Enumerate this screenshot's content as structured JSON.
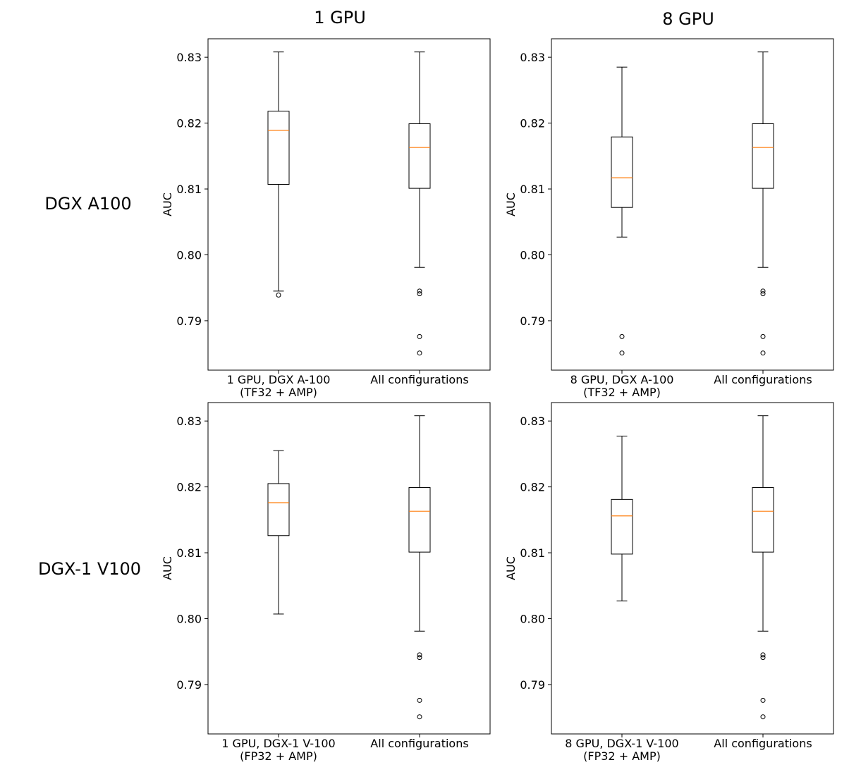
{
  "figure": {
    "column_titles": [
      "1 GPU",
      "8 GPU"
    ],
    "row_titles": [
      "DGX A100",
      "DGX-1 V100"
    ]
  },
  "colors": {
    "median": "#ff7f0e",
    "box": "#000000",
    "background": "#ffffff"
  },
  "chart_data": [
    {
      "type": "box",
      "ylabel": "AUC",
      "ylim": [
        0.7825,
        0.8328
      ],
      "yticks": [
        "0.79",
        "0.80",
        "0.81",
        "0.82",
        "0.83"
      ],
      "categories": [
        [
          "1 GPU, DGX A-100",
          "(TF32 + AMP)"
        ],
        [
          "All configurations"
        ]
      ],
      "boxes": [
        {
          "whisker_low": 0.7945,
          "q1": 0.8107,
          "median": 0.8189,
          "q3": 0.8218,
          "whisker_high": 0.8308,
          "outliers": [
            0.7939
          ]
        },
        {
          "whisker_low": 0.7981,
          "q1": 0.8101,
          "median": 0.8163,
          "q3": 0.8199,
          "whisker_high": 0.8308,
          "outliers": [
            0.7945,
            0.7941,
            0.7876,
            0.7851
          ]
        }
      ]
    },
    {
      "type": "box",
      "ylabel": "AUC",
      "ylim": [
        0.7825,
        0.8328
      ],
      "yticks": [
        "0.79",
        "0.80",
        "0.81",
        "0.82",
        "0.83"
      ],
      "categories": [
        [
          "8 GPU, DGX A-100",
          "(TF32 + AMP)"
        ],
        [
          "All configurations"
        ]
      ],
      "boxes": [
        {
          "whisker_low": 0.8027,
          "q1": 0.8072,
          "median": 0.8117,
          "q3": 0.8179,
          "whisker_high": 0.8285,
          "outliers": [
            0.7876,
            0.7851
          ]
        },
        {
          "whisker_low": 0.7981,
          "q1": 0.8101,
          "median": 0.8163,
          "q3": 0.8199,
          "whisker_high": 0.8308,
          "outliers": [
            0.7945,
            0.7941,
            0.7876,
            0.7851
          ]
        }
      ]
    },
    {
      "type": "box",
      "ylabel": "AUC",
      "ylim": [
        0.7825,
        0.8328
      ],
      "yticks": [
        "0.79",
        "0.80",
        "0.81",
        "0.82",
        "0.83"
      ],
      "categories": [
        [
          "1 GPU, DGX-1 V-100",
          "(FP32 + AMP)"
        ],
        [
          "All configurations"
        ]
      ],
      "boxes": [
        {
          "whisker_low": 0.8007,
          "q1": 0.8126,
          "median": 0.8176,
          "q3": 0.8205,
          "whisker_high": 0.8255,
          "outliers": []
        },
        {
          "whisker_low": 0.7981,
          "q1": 0.8101,
          "median": 0.8163,
          "q3": 0.8199,
          "whisker_high": 0.8308,
          "outliers": [
            0.7945,
            0.7941,
            0.7876,
            0.7851
          ]
        }
      ]
    },
    {
      "type": "box",
      "ylabel": "AUC",
      "ylim": [
        0.7825,
        0.8328
      ],
      "yticks": [
        "0.79",
        "0.80",
        "0.81",
        "0.82",
        "0.83"
      ],
      "categories": [
        [
          "8 GPU, DGX-1 V-100",
          "(FP32 + AMP)"
        ],
        [
          "All configurations"
        ]
      ],
      "boxes": [
        {
          "whisker_low": 0.8027,
          "q1": 0.8098,
          "median": 0.8156,
          "q3": 0.8181,
          "whisker_high": 0.8277,
          "outliers": []
        },
        {
          "whisker_low": 0.7981,
          "q1": 0.8101,
          "median": 0.8163,
          "q3": 0.8199,
          "whisker_high": 0.8308,
          "outliers": [
            0.7945,
            0.7941,
            0.7876,
            0.7851
          ]
        }
      ]
    }
  ]
}
